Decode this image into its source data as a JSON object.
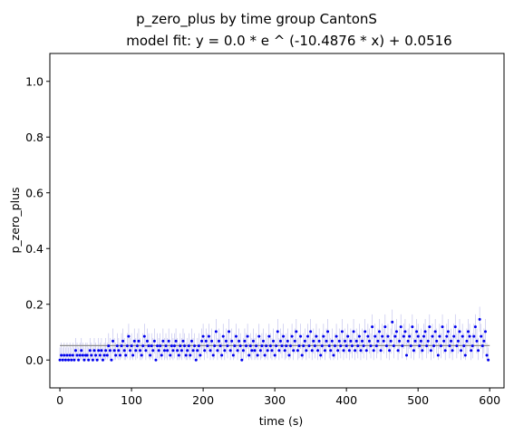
{
  "chart_data": {
    "type": "scatter",
    "title": "p_zero_plus by time group CantonS",
    "subtitle": "model fit: y = 0.0 * e ^ (-10.4876 * x) + 0.0516",
    "xlabel": "time (s)",
    "ylabel": "p_zero_plus",
    "xlim": [
      -14,
      620
    ],
    "ylim": [
      -0.1,
      1.1
    ],
    "xticks": [
      0,
      100,
      200,
      300,
      400,
      500,
      600
    ],
    "yticks": [
      0.0,
      0.2,
      0.4,
      0.6,
      0.8,
      1.0
    ],
    "xtick_labels": [
      "0",
      "100",
      "200",
      "300",
      "400",
      "500",
      "600"
    ],
    "ytick_labels": [
      "0.0",
      "0.2",
      "0.4",
      "0.6",
      "0.8",
      "1.0"
    ],
    "grid": false,
    "fit": {
      "a": 0.0,
      "b": -10.4876,
      "c": 0.0516,
      "x_range": [
        0,
        600
      ]
    },
    "colors": {
      "points": "#0000ee",
      "errorbars": "#a9a9e6",
      "fit": "#8c8c8c"
    },
    "series": [
      {
        "values": [
          [
            0,
            0.0
          ],
          [
            2,
            0.017
          ],
          [
            4,
            0.0
          ],
          [
            6,
            0.017
          ],
          [
            8,
            0.0
          ],
          [
            10,
            0.017
          ],
          [
            12,
            0.0
          ],
          [
            14,
            0.017
          ],
          [
            16,
            0.0
          ],
          [
            18,
            0.017
          ],
          [
            20,
            0.0
          ],
          [
            22,
            0.034
          ],
          [
            24,
            0.017
          ],
          [
            26,
            0.0
          ],
          [
            28,
            0.017
          ],
          [
            30,
            0.034
          ],
          [
            32,
            0.017
          ],
          [
            34,
            0.0
          ],
          [
            36,
            0.017
          ],
          [
            38,
            0.017
          ],
          [
            40,
            0.0
          ],
          [
            42,
            0.034
          ],
          [
            44,
            0.017
          ],
          [
            46,
            0.0
          ],
          [
            48,
            0.034
          ],
          [
            50,
            0.017
          ],
          [
            52,
            0.0
          ],
          [
            54,
            0.034
          ],
          [
            56,
            0.017
          ],
          [
            58,
            0.034
          ],
          [
            60,
            0.0
          ],
          [
            62,
            0.017
          ],
          [
            64,
            0.034
          ],
          [
            66,
            0.017
          ],
          [
            68,
            0.051
          ],
          [
            70,
            0.034
          ],
          [
            72,
            0.0
          ],
          [
            74,
            0.068
          ],
          [
            76,
            0.034
          ],
          [
            78,
            0.017
          ],
          [
            80,
            0.051
          ],
          [
            82,
            0.034
          ],
          [
            84,
            0.017
          ],
          [
            86,
            0.051
          ],
          [
            88,
            0.068
          ],
          [
            90,
            0.034
          ],
          [
            92,
            0.017
          ],
          [
            94,
            0.051
          ],
          [
            96,
            0.085
          ],
          [
            98,
            0.034
          ],
          [
            100,
            0.051
          ],
          [
            102,
            0.017
          ],
          [
            104,
            0.068
          ],
          [
            106,
            0.034
          ],
          [
            108,
            0.051
          ],
          [
            110,
            0.068
          ],
          [
            112,
            0.034
          ],
          [
            114,
            0.017
          ],
          [
            116,
            0.051
          ],
          [
            118,
            0.085
          ],
          [
            120,
            0.034
          ],
          [
            122,
            0.068
          ],
          [
            124,
            0.051
          ],
          [
            126,
            0.017
          ],
          [
            128,
            0.051
          ],
          [
            130,
            0.034
          ],
          [
            132,
            0.068
          ],
          [
            134,
            0.0
          ],
          [
            136,
            0.051
          ],
          [
            138,
            0.034
          ],
          [
            140,
            0.051
          ],
          [
            142,
            0.017
          ],
          [
            144,
            0.068
          ],
          [
            146,
            0.034
          ],
          [
            148,
            0.051
          ],
          [
            150,
            0.034
          ],
          [
            152,
            0.068
          ],
          [
            154,
            0.017
          ],
          [
            156,
            0.051
          ],
          [
            158,
            0.034
          ],
          [
            160,
            0.051
          ],
          [
            162,
            0.068
          ],
          [
            164,
            0.034
          ],
          [
            166,
            0.017
          ],
          [
            168,
            0.051
          ],
          [
            170,
            0.034
          ],
          [
            172,
            0.068
          ],
          [
            174,
            0.051
          ],
          [
            176,
            0.017
          ],
          [
            178,
            0.034
          ],
          [
            180,
            0.051
          ],
          [
            182,
            0.017
          ],
          [
            184,
            0.068
          ],
          [
            186,
            0.034
          ],
          [
            188,
            0.051
          ],
          [
            190,
            0.0
          ],
          [
            192,
            0.034
          ],
          [
            194,
            0.051
          ],
          [
            196,
            0.017
          ],
          [
            198,
            0.068
          ],
          [
            200,
            0.085
          ],
          [
            202,
            0.034
          ],
          [
            204,
            0.068
          ],
          [
            206,
            0.051
          ],
          [
            208,
            0.085
          ],
          [
            210,
            0.034
          ],
          [
            212,
            0.068
          ],
          [
            214,
            0.017
          ],
          [
            216,
            0.051
          ],
          [
            218,
            0.102
          ],
          [
            220,
            0.034
          ],
          [
            222,
            0.068
          ],
          [
            224,
            0.051
          ],
          [
            226,
            0.017
          ],
          [
            228,
            0.085
          ],
          [
            230,
            0.034
          ],
          [
            232,
            0.068
          ],
          [
            234,
            0.051
          ],
          [
            236,
            0.102
          ],
          [
            238,
            0.034
          ],
          [
            240,
            0.068
          ],
          [
            242,
            0.017
          ],
          [
            244,
            0.051
          ],
          [
            246,
            0.085
          ],
          [
            248,
            0.034
          ],
          [
            250,
            0.068
          ],
          [
            252,
            0.051
          ],
          [
            254,
            0.0
          ],
          [
            256,
            0.034
          ],
          [
            258,
            0.068
          ],
          [
            260,
            0.051
          ],
          [
            262,
            0.085
          ],
          [
            264,
            0.017
          ],
          [
            266,
            0.051
          ],
          [
            268,
            0.034
          ],
          [
            270,
            0.068
          ],
          [
            272,
            0.034
          ],
          [
            274,
            0.051
          ],
          [
            276,
            0.017
          ],
          [
            278,
            0.085
          ],
          [
            280,
            0.034
          ],
          [
            282,
            0.051
          ],
          [
            284,
            0.068
          ],
          [
            286,
            0.017
          ],
          [
            288,
            0.051
          ],
          [
            290,
            0.034
          ],
          [
            292,
            0.085
          ],
          [
            294,
            0.051
          ],
          [
            296,
            0.034
          ],
          [
            298,
            0.068
          ],
          [
            300,
            0.017
          ],
          [
            302,
            0.051
          ],
          [
            304,
            0.102
          ],
          [
            306,
            0.034
          ],
          [
            308,
            0.068
          ],
          [
            310,
            0.051
          ],
          [
            312,
            0.085
          ],
          [
            314,
            0.034
          ],
          [
            316,
            0.051
          ],
          [
            318,
            0.068
          ],
          [
            320,
            0.017
          ],
          [
            322,
            0.051
          ],
          [
            324,
            0.085
          ],
          [
            326,
            0.034
          ],
          [
            328,
            0.068
          ],
          [
            330,
            0.102
          ],
          [
            332,
            0.034
          ],
          [
            334,
            0.051
          ],
          [
            336,
            0.085
          ],
          [
            338,
            0.017
          ],
          [
            340,
            0.051
          ],
          [
            342,
            0.068
          ],
          [
            344,
            0.034
          ],
          [
            346,
            0.085
          ],
          [
            348,
            0.051
          ],
          [
            350,
            0.102
          ],
          [
            352,
            0.034
          ],
          [
            354,
            0.068
          ],
          [
            356,
            0.051
          ],
          [
            358,
            0.085
          ],
          [
            360,
            0.034
          ],
          [
            362,
            0.068
          ],
          [
            364,
            0.017
          ],
          [
            366,
            0.051
          ],
          [
            368,
            0.085
          ],
          [
            370,
            0.034
          ],
          [
            372,
            0.068
          ],
          [
            374,
            0.102
          ],
          [
            376,
            0.051
          ],
          [
            378,
            0.034
          ],
          [
            380,
            0.068
          ],
          [
            382,
            0.017
          ],
          [
            384,
            0.051
          ],
          [
            386,
            0.085
          ],
          [
            388,
            0.034
          ],
          [
            390,
            0.068
          ],
          [
            392,
            0.051
          ],
          [
            394,
            0.102
          ],
          [
            396,
            0.034
          ],
          [
            398,
            0.068
          ],
          [
            400,
            0.051
          ],
          [
            402,
            0.085
          ],
          [
            404,
            0.034
          ],
          [
            406,
            0.068
          ],
          [
            408,
            0.051
          ],
          [
            410,
            0.102
          ],
          [
            412,
            0.034
          ],
          [
            414,
            0.068
          ],
          [
            416,
            0.051
          ],
          [
            418,
            0.085
          ],
          [
            420,
            0.034
          ],
          [
            422,
            0.068
          ],
          [
            424,
            0.051
          ],
          [
            426,
            0.102
          ],
          [
            428,
            0.034
          ],
          [
            430,
            0.085
          ],
          [
            432,
            0.068
          ],
          [
            434,
            0.051
          ],
          [
            436,
            0.119
          ],
          [
            438,
            0.034
          ],
          [
            440,
            0.085
          ],
          [
            442,
            0.051
          ],
          [
            444,
            0.068
          ],
          [
            446,
            0.102
          ],
          [
            448,
            0.034
          ],
          [
            450,
            0.085
          ],
          [
            452,
            0.068
          ],
          [
            454,
            0.119
          ],
          [
            456,
            0.051
          ],
          [
            458,
            0.085
          ],
          [
            460,
            0.034
          ],
          [
            462,
            0.068
          ],
          [
            464,
            0.136
          ],
          [
            466,
            0.051
          ],
          [
            468,
            0.085
          ],
          [
            470,
            0.102
          ],
          [
            472,
            0.034
          ],
          [
            474,
            0.068
          ],
          [
            476,
            0.119
          ],
          [
            478,
            0.051
          ],
          [
            480,
            0.085
          ],
          [
            482,
            0.102
          ],
          [
            484,
            0.017
          ],
          [
            486,
            0.068
          ],
          [
            488,
            0.085
          ],
          [
            490,
            0.051
          ],
          [
            492,
            0.119
          ],
          [
            494,
            0.034
          ],
          [
            496,
            0.068
          ],
          [
            498,
            0.102
          ],
          [
            500,
            0.085
          ],
          [
            502,
            0.051
          ],
          [
            504,
            0.068
          ],
          [
            506,
            0.034
          ],
          [
            508,
            0.085
          ],
          [
            510,
            0.102
          ],
          [
            512,
            0.051
          ],
          [
            514,
            0.068
          ],
          [
            516,
            0.119
          ],
          [
            518,
            0.034
          ],
          [
            520,
            0.085
          ],
          [
            522,
            0.051
          ],
          [
            524,
            0.102
          ],
          [
            526,
            0.068
          ],
          [
            528,
            0.017
          ],
          [
            530,
            0.085
          ],
          [
            532,
            0.051
          ],
          [
            534,
            0.119
          ],
          [
            536,
            0.068
          ],
          [
            538,
            0.034
          ],
          [
            540,
            0.085
          ],
          [
            542,
            0.102
          ],
          [
            544,
            0.051
          ],
          [
            546,
            0.068
          ],
          [
            548,
            0.034
          ],
          [
            550,
            0.085
          ],
          [
            552,
            0.119
          ],
          [
            554,
            0.051
          ],
          [
            556,
            0.068
          ],
          [
            558,
            0.102
          ],
          [
            560,
            0.034
          ],
          [
            562,
            0.085
          ],
          [
            564,
            0.051
          ],
          [
            566,
            0.017
          ],
          [
            568,
            0.068
          ],
          [
            570,
            0.102
          ],
          [
            572,
            0.085
          ],
          [
            574,
            0.034
          ],
          [
            576,
            0.051
          ],
          [
            578,
            0.085
          ],
          [
            580,
            0.119
          ],
          [
            582,
            0.068
          ],
          [
            584,
            0.034
          ],
          [
            586,
            0.146
          ],
          [
            588,
            0.085
          ],
          [
            590,
            0.051
          ],
          [
            592,
            0.068
          ],
          [
            594,
            0.102
          ],
          [
            596,
            0.017
          ],
          [
            598,
            0.0
          ]
        ],
        "error": 0.045
      }
    ]
  }
}
